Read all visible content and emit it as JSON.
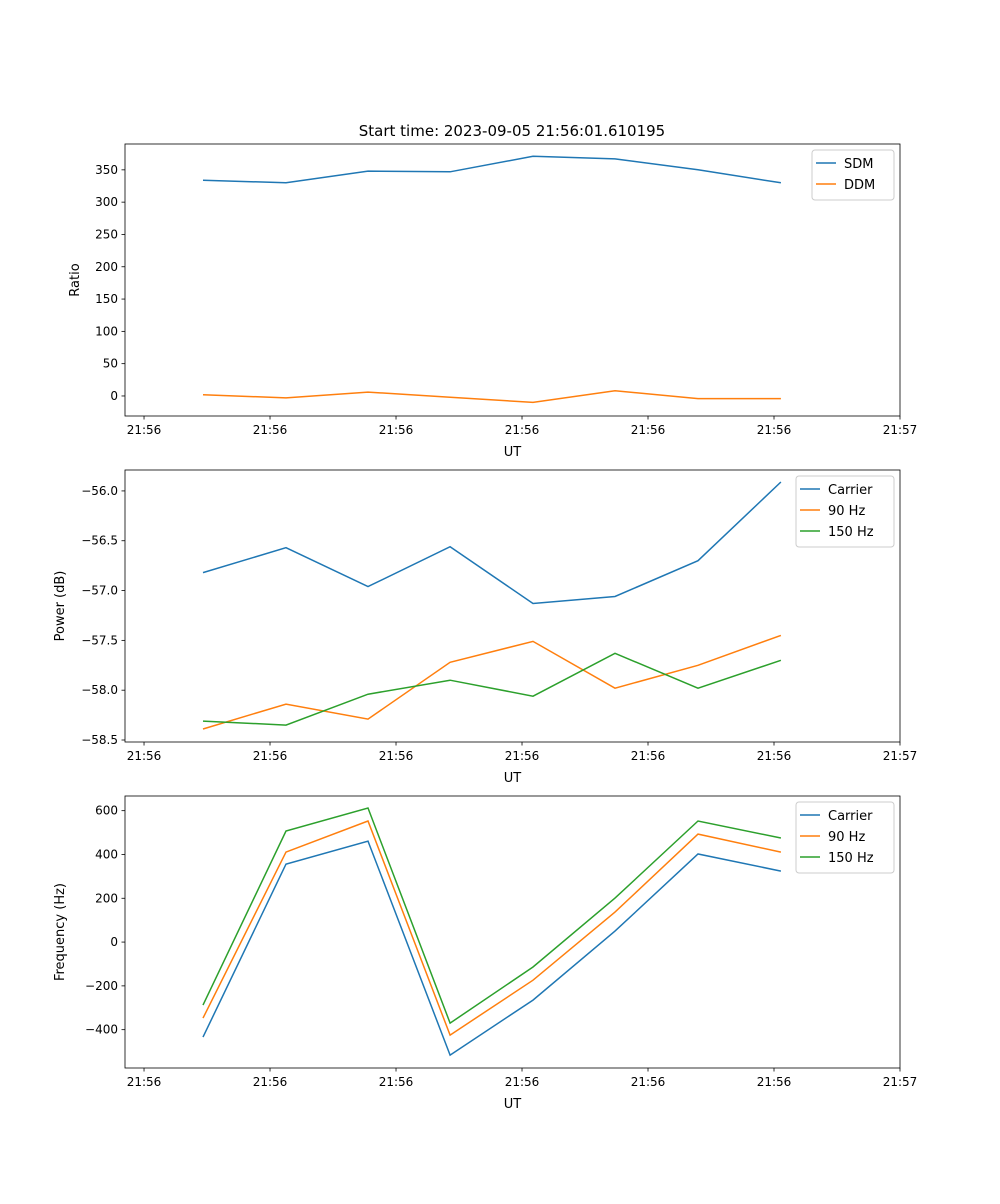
{
  "title": "Start time: 2023-09-05 21:56:01.610195",
  "chart_data": [
    {
      "type": "line",
      "xlabel": "UT",
      "ylabel": "Ratio",
      "x": [
        0.468,
        1.127,
        1.778,
        2.429,
        3.087,
        3.738,
        4.397,
        5.055
      ],
      "xticks": [
        0,
        1,
        2,
        3,
        4,
        5,
        6
      ],
      "xtick_labels": [
        "21:56",
        "21:56",
        "21:56",
        "21:56",
        "21:56",
        "21:56",
        "21:57"
      ],
      "xlim": [
        -0.151,
        6.0
      ],
      "ylim": [
        -31,
        390
      ],
      "yticks": [
        0,
        50,
        100,
        150,
        200,
        250,
        300,
        350
      ],
      "ytick_labels": [
        "0",
        "50",
        "100",
        "150",
        "200",
        "250",
        "300",
        "350"
      ],
      "legend": "top-right",
      "series": [
        {
          "name": "SDM",
          "color": "#1f77b4",
          "values": [
            334,
            330,
            348,
            347,
            371,
            367,
            350,
            330
          ]
        },
        {
          "name": "DDM",
          "color": "#ff7f0e",
          "values": [
            2,
            -3,
            6,
            -2,
            -10,
            8,
            -4,
            -4
          ]
        }
      ]
    },
    {
      "type": "line",
      "xlabel": "UT",
      "ylabel": "Power (dB)",
      "x": [
        0.468,
        1.127,
        1.778,
        2.429,
        3.087,
        3.738,
        4.397,
        5.055
      ],
      "xticks": [
        0,
        1,
        2,
        3,
        4,
        5,
        6
      ],
      "xtick_labels": [
        "21:56",
        "21:56",
        "21:56",
        "21:56",
        "21:56",
        "21:56",
        "21:57"
      ],
      "xlim": [
        -0.151,
        6.0
      ],
      "ylim": [
        -58.52,
        -55.79
      ],
      "yticks": [
        -58.5,
        -58.0,
        -57.5,
        -57.0,
        -56.5,
        -56.0
      ],
      "ytick_labels": [
        "−58.5",
        "−58.0",
        "−57.5",
        "−57.0",
        "−56.5",
        "−56.0"
      ],
      "legend": "top-right",
      "series": [
        {
          "name": "Carrier",
          "color": "#1f77b4",
          "values": [
            -56.82,
            -56.57,
            -56.96,
            -56.56,
            -57.13,
            -57.06,
            -56.7,
            -55.91
          ]
        },
        {
          "name": "90 Hz",
          "color": "#ff7f0e",
          "values": [
            -58.39,
            -58.14,
            -58.29,
            -57.72,
            -57.51,
            -57.98,
            -57.75,
            -57.45
          ]
        },
        {
          "name": "150 Hz",
          "color": "#2ca02c",
          "values": [
            -58.31,
            -58.35,
            -58.04,
            -57.9,
            -58.06,
            -57.63,
            -57.98,
            -57.7
          ]
        }
      ]
    },
    {
      "type": "line",
      "xlabel": "UT",
      "ylabel": "Frequency (Hz)",
      "x": [
        0.468,
        1.127,
        1.778,
        2.429,
        3.087,
        3.738,
        4.397,
        5.055
      ],
      "xticks": [
        0,
        1,
        2,
        3,
        4,
        5,
        6
      ],
      "xtick_labels": [
        "21:56",
        "21:56",
        "21:56",
        "21:56",
        "21:56",
        "21:56",
        "21:57"
      ],
      "xlim": [
        -0.151,
        6.0
      ],
      "ylim": [
        -575,
        667
      ],
      "yticks": [
        -400,
        -200,
        0,
        200,
        400,
        600
      ],
      "ytick_labels": [
        "−400",
        "−200",
        "0",
        "200",
        "400",
        "600"
      ],
      "legend": "top-right",
      "series": [
        {
          "name": "Carrier",
          "color": "#1f77b4",
          "values": [
            -434,
            356,
            461,
            -516,
            -265,
            50,
            402,
            324
          ]
        },
        {
          "name": "90 Hz",
          "color": "#ff7f0e",
          "values": [
            -347,
            411,
            553,
            -425,
            -174,
            137,
            493,
            411
          ]
        },
        {
          "name": "150 Hz",
          "color": "#2ca02c",
          "values": [
            -288,
            507,
            612,
            -370,
            -114,
            201,
            553,
            475
          ]
        }
      ]
    }
  ]
}
